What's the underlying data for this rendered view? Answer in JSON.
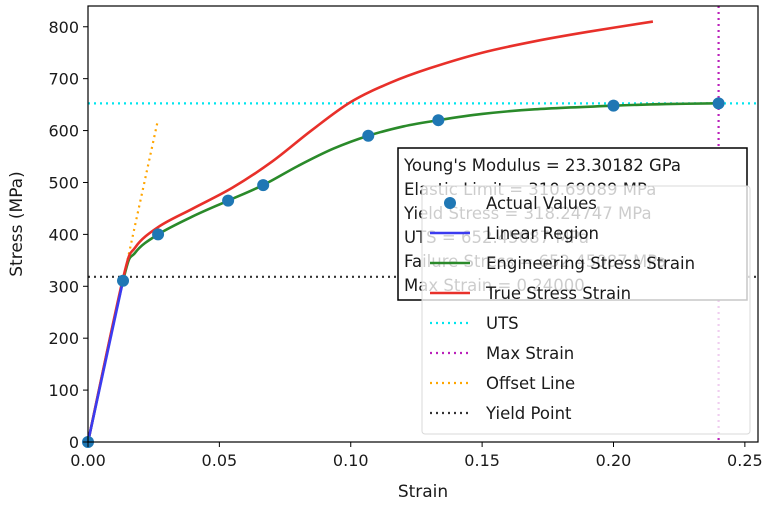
{
  "chart_data": {
    "type": "line",
    "xlabel": "Strain",
    "ylabel": "Stress  (MPa)",
    "xlim": [
      0.0,
      0.255
    ],
    "ylim": [
      0,
      840
    ],
    "x_ticks": [
      0.0,
      0.05,
      0.1,
      0.15,
      0.2,
      0.25
    ],
    "x_tick_labels": [
      "0.00",
      "0.05",
      "0.10",
      "0.15",
      "0.20",
      "0.25"
    ],
    "y_ticks": [
      0,
      100,
      200,
      300,
      400,
      500,
      600,
      700,
      800
    ],
    "y_tick_labels": [
      "0",
      "100",
      "200",
      "300",
      "400",
      "500",
      "600",
      "700",
      "800"
    ],
    "grid": false,
    "legend_position": "center-right",
    "series": [
      {
        "name": "Actual Values",
        "style": "points",
        "color": "#1f77b4",
        "x": [
          0.0,
          0.01333,
          0.02667,
          0.05333,
          0.06667,
          0.10667,
          0.13333,
          0.2,
          0.24
        ],
        "y": [
          0,
          310.69,
          400,
          465,
          495,
          590,
          620,
          648,
          652.45
        ]
      },
      {
        "name": "Linear Region",
        "style": "solid",
        "color": "#3b3bf0",
        "x": [
          0.0,
          0.01333
        ],
        "y": [
          0,
          310.69
        ]
      },
      {
        "name": "Engineering Stress Strain",
        "style": "solid",
        "color": "#2a8a2a",
        "x": [
          0.0,
          0.01333,
          0.018,
          0.02667,
          0.04,
          0.05333,
          0.06667,
          0.08,
          0.09333,
          0.10667,
          0.12,
          0.13333,
          0.15,
          0.17,
          0.2,
          0.22,
          0.24
        ],
        "y": [
          0,
          310.69,
          365,
          400,
          435,
          465,
          495,
          532,
          565,
          590,
          608,
          620,
          632,
          641,
          648,
          651,
          652.45
        ]
      },
      {
        "name": "True Stress Strain",
        "style": "solid",
        "color": "#e8302a",
        "x": [
          0.0,
          0.01333,
          0.018,
          0.027,
          0.04,
          0.055,
          0.07,
          0.085,
          0.1,
          0.115,
          0.13,
          0.15,
          0.17,
          0.19,
          0.215
        ],
        "y": [
          0,
          315,
          375,
          415,
          450,
          490,
          540,
          600,
          655,
          692,
          720,
          750,
          772,
          790,
          810
        ]
      },
      {
        "name": "UTS",
        "style": "dotted",
        "color": "#00e5ee",
        "orientation": "horizontal",
        "value": 652.45
      },
      {
        "name": "Max Strain",
        "style": "dotted",
        "color": "#bb22bb",
        "orientation": "vertical",
        "value": 0.24
      },
      {
        "name": "Offset Line",
        "style": "dotted",
        "color": "#ffa500",
        "x": [
          0.0,
          0.0266
        ],
        "y": [
          0,
          620
        ]
      },
      {
        "name": "Yield Point",
        "style": "dotted",
        "color": "#333333",
        "orientation": "horizontal",
        "value": 318.25
      }
    ],
    "annotation": {
      "lines": [
        "Young's Modulus = 23.30182 GPa",
        "Elastic Limit = 310.69089 MPa",
        "Yield Stress = 318.24747 MPa",
        "UTS = 652.45087 MPa",
        "Failure Stress = 652.45087 MPa",
        "Max Strain = 0.24000"
      ]
    }
  }
}
